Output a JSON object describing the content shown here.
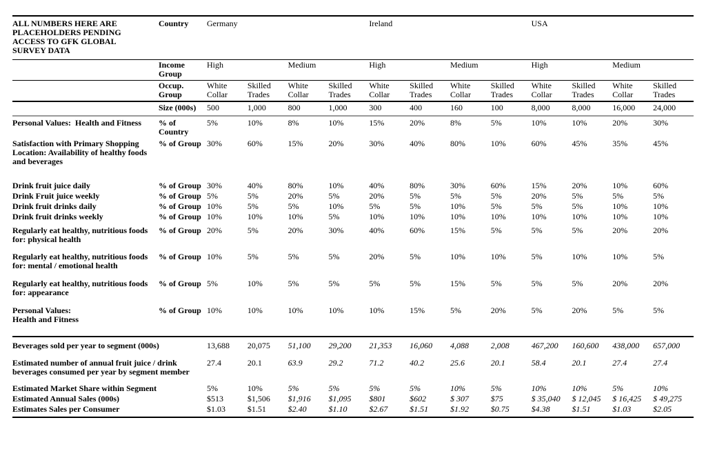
{
  "document": {
    "background": "#ffffff",
    "text_color": "#000000",
    "rule_color": "#000000",
    "size_rule_color": "#999999"
  },
  "table": {
    "note": "ALL NUMBERS HERE ARE\nPLACEHOLDERS PENDING\nACCESS TO GFK GLOBAL\nSURVEY DATA",
    "header": {
      "country_label": "Country",
      "countries": [
        "Germany",
        "Ireland",
        "USA"
      ],
      "income_label": "Income Group",
      "income_groups": [
        "High",
        "Medium",
        "High",
        "Medium",
        "High",
        "Medium"
      ],
      "occup_label": "Occup. Group",
      "occup_groups": [
        "White Collar",
        "Skilled Trades",
        "White Collar",
        "Skilled Trades",
        "White Collar",
        "Skilled Trades",
        "White Collar",
        "Skilled Trades",
        "White Collar",
        "Skilled Trades",
        "White Collar",
        "Skilled Trades"
      ],
      "size_label": "Size (000s)",
      "sizes": [
        "500",
        "1,000",
        "800",
        "1,000",
        "300",
        "400",
        "160",
        "100",
        "8,000",
        "8,000",
        "16,000",
        "24,000"
      ]
    },
    "rows": [
      {
        "label": "Personal Values:  Health and Fitness",
        "measure": "% of Country",
        "values": [
          "5%",
          "10%",
          "8%",
          "10%",
          "15%",
          "20%",
          "8%",
          "5%",
          "10%",
          "10%",
          "20%",
          "30%"
        ]
      },
      {
        "label": "Satisfaction with Primary Shopping Location: Availability of healthy foods and beverages",
        "measure": "% of Group",
        "values": [
          "30%",
          "60%",
          "15%",
          "20%",
          "30%",
          "40%",
          "80%",
          "10%",
          "60%",
          "45%",
          "35%",
          "45%"
        ]
      },
      {
        "label": "Drink fruit juice daily",
        "measure": "% of Group",
        "values": [
          "30%",
          "40%",
          "80%",
          "10%",
          "40%",
          "80%",
          "30%",
          "60%",
          "15%",
          "20%",
          "10%",
          "60%"
        ]
      },
      {
        "label": "Drink Fruit juice weekly",
        "measure": "% of Group",
        "values": [
          "5%",
          "5%",
          "20%",
          "5%",
          "20%",
          "5%",
          "5%",
          "5%",
          "20%",
          "5%",
          "5%",
          "5%"
        ]
      },
      {
        "label": "Drink fruit drinks daily",
        "measure": "% of Group",
        "values": [
          "10%",
          "5%",
          "5%",
          "10%",
          "5%",
          "5%",
          "10%",
          "5%",
          "5%",
          "5%",
          "10%",
          "10%"
        ]
      },
      {
        "label": "Drink fruit drinks weekly",
        "measure": "% of Group",
        "values": [
          "10%",
          "10%",
          "10%",
          "5%",
          "10%",
          "10%",
          "10%",
          "10%",
          "10%",
          "10%",
          "10%",
          "10%"
        ]
      },
      {
        "label": "Regularly eat healthy, nutritious foods for: physical health",
        "measure": "% of Group",
        "values": [
          "20%",
          "5%",
          "20%",
          "30%",
          "40%",
          "60%",
          "15%",
          "5%",
          "5%",
          "5%",
          "20%",
          "20%"
        ]
      },
      {
        "label": "Regularly eat healthy, nutritious foods for: mental / emotional health",
        "measure": "% of Group",
        "values": [
          "10%",
          "5%",
          "5%",
          "5%",
          "20%",
          "5%",
          "10%",
          "10%",
          "5%",
          "10%",
          "10%",
          "5%"
        ]
      },
      {
        "label": "Regularly eat healthy, nutritious foods for: appearance",
        "measure": "% of Group",
        "values": [
          "5%",
          "10%",
          "5%",
          "5%",
          "5%",
          "5%",
          "15%",
          "5%",
          "5%",
          "5%",
          "20%",
          "20%"
        ]
      },
      {
        "label": "Personal Values:\nHealth and Fitness",
        "measure": "% of Group",
        "values": [
          "10%",
          "10%",
          "10%",
          "10%",
          "10%",
          "15%",
          "5%",
          "20%",
          "5%",
          "20%",
          "5%",
          "5%"
        ]
      }
    ],
    "summary_italic_from_column": 2,
    "summary_rows": [
      {
        "label": "Beverages sold per year to segment (000s)",
        "values": [
          "13,688",
          "20,075",
          "51,100",
          "29,200",
          "21,353",
          "16,060",
          "4,088",
          "2,008",
          "467,200",
          "160,600",
          "438,000",
          "657,000"
        ]
      },
      {
        "label": "Estimated number of annual fruit juice / drink beverages consumed per year by segment member",
        "values": [
          "27.4",
          "20.1",
          "63.9",
          "29.2",
          "71.2",
          "40.2",
          "25.6",
          "20.1",
          "58.4",
          "20.1",
          "27.4",
          "27.4"
        ]
      },
      {
        "label": "Estimated Market Share within Segment",
        "values": [
          "5%",
          "10%",
          "5%",
          "5%",
          "5%",
          "5%",
          "10%",
          "5%",
          "10%",
          "10%",
          "5%",
          "10%"
        ]
      },
      {
        "label": "Estimated Annual Sales (000s)",
        "values": [
          "$513",
          "$1,506",
          "$1,916",
          "$1,095",
          "$801",
          "$602",
          "$ 307",
          "$75",
          "$ 35,040",
          "$ 12,045",
          "$ 16,425",
          "$ 49,275"
        ]
      },
      {
        "label": "Estimates Sales per Consumer",
        "values": [
          "$1.03",
          "$1.51",
          "$2.40",
          "$1.10",
          "$2.67",
          "$1.51",
          "$1.92",
          "$0.75",
          "$4.38",
          "$1.51",
          "$1.03",
          "$2.05"
        ]
      }
    ]
  }
}
